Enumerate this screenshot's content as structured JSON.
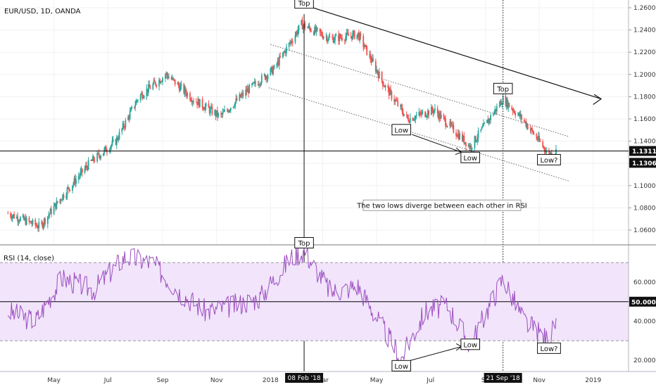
{
  "header": {
    "symbol_title": "EUR/USD, 1D, OANDA"
  },
  "rsi_panel": {
    "title": "RSI (14, close)"
  },
  "colors": {
    "up": "#26a69a",
    "down": "#ef5350",
    "rsi_line": "#9c4fbf",
    "rsi_band": "#f1e4fb",
    "axis_marker": "#000000"
  },
  "chart_data": [
    {
      "type": "candlestick",
      "title": "EUR/USD, 1D, OANDA",
      "y_ticks": [
        "1.26000",
        "1.24000",
        "1.22000",
        "1.20000",
        "1.18000",
        "1.16000",
        "1.14000",
        "1.12000",
        "1.10000",
        "1.08000",
        "1.06000"
      ],
      "ylim": [
        1.05,
        1.266
      ],
      "x_ticks": [
        "May",
        "Jul",
        "Sep",
        "Nov",
        "2018",
        "Mar",
        "May",
        "Jul",
        "Se",
        "Nov",
        "2019"
      ],
      "x_markers": [
        "08 Feb '18",
        "21 Sep '18"
      ],
      "price_labels": [
        "1.13115",
        "1.13064"
      ],
      "current_price": 1.13115,
      "anchor_points": [
        {
          "date": "2017-03-10",
          "close": 1.075
        },
        {
          "date": "2017-04-15",
          "close": 1.063
        },
        {
          "date": "2017-05-10",
          "close": 1.09
        },
        {
          "date": "2017-06-10",
          "close": 1.12
        },
        {
          "date": "2017-07-10",
          "close": 1.14
        },
        {
          "date": "2017-08-05",
          "close": 1.18
        },
        {
          "date": "2017-09-05",
          "close": 1.2
        },
        {
          "date": "2017-10-05",
          "close": 1.178
        },
        {
          "date": "2017-11-05",
          "close": 1.162
        },
        {
          "date": "2017-12-05",
          "close": 1.185
        },
        {
          "date": "2018-01-05",
          "close": 1.205
        },
        {
          "date": "2018-02-05",
          "close": 1.245
        },
        {
          "date": "2018-03-10",
          "close": 1.232
        },
        {
          "date": "2018-04-10",
          "close": 1.236
        },
        {
          "date": "2018-05-10",
          "close": 1.19
        },
        {
          "date": "2018-06-05",
          "close": 1.16
        },
        {
          "date": "2018-07-05",
          "close": 1.168
        },
        {
          "date": "2018-08-15",
          "close": 1.135
        },
        {
          "date": "2018-09-21",
          "close": 1.178
        },
        {
          "date": "2018-10-15",
          "close": 1.158
        },
        {
          "date": "2018-11-12",
          "close": 1.128
        },
        {
          "date": "2018-11-20",
          "close": 1.131
        }
      ],
      "annotations": {
        "callouts": [
          {
            "text": "Top",
            "date": "2018-02-08",
            "price": 1.264
          },
          {
            "text": "Top",
            "date": "2018-09-21",
            "price": 1.187
          },
          {
            "text": "Low",
            "date": "2018-05-29",
            "price": 1.15
          },
          {
            "text": "Low",
            "date": "2018-08-15",
            "price": 1.125
          },
          {
            "text": "Low?",
            "date": "2018-11-12",
            "price": 1.123
          }
        ],
        "note": "The two lows diverge between each other in RSI"
      }
    },
    {
      "type": "line",
      "title": "RSI (14, close)",
      "y_ticks": [
        "60.0000",
        "40.0000",
        "20.0000"
      ],
      "ylim": [
        15,
        80
      ],
      "level_label": "50.0000",
      "bands": [
        30,
        70
      ],
      "anchor_points": [
        {
          "date": "2017-03-10",
          "value": 45
        },
        {
          "date": "2017-04-10",
          "value": 40
        },
        {
          "date": "2017-05-10",
          "value": 62
        },
        {
          "date": "2017-06-15",
          "value": 56
        },
        {
          "date": "2017-07-20",
          "value": 73
        },
        {
          "date": "2017-08-20",
          "value": 70
        },
        {
          "date": "2017-09-20",
          "value": 55
        },
        {
          "date": "2017-10-20",
          "value": 45
        },
        {
          "date": "2017-11-20",
          "value": 48
        },
        {
          "date": "2017-12-20",
          "value": 52
        },
        {
          "date": "2018-01-25",
          "value": 73
        },
        {
          "date": "2018-02-08",
          "value": 76
        },
        {
          "date": "2018-03-10",
          "value": 55
        },
        {
          "date": "2018-04-10",
          "value": 58
        },
        {
          "date": "2018-05-10",
          "value": 35
        },
        {
          "date": "2018-05-29",
          "value": 21
        },
        {
          "date": "2018-06-25",
          "value": 45
        },
        {
          "date": "2018-07-20",
          "value": 48
        },
        {
          "date": "2018-08-15",
          "value": 28
        },
        {
          "date": "2018-09-21",
          "value": 62
        },
        {
          "date": "2018-10-15",
          "value": 40
        },
        {
          "date": "2018-11-12",
          "value": 30
        },
        {
          "date": "2018-11-20",
          "value": 40
        }
      ],
      "annotations": {
        "callouts": [
          {
            "text": "Top",
            "date": "2018-02-08",
            "value": 80
          },
          {
            "text": "Low",
            "date": "2018-05-29",
            "value": 17
          },
          {
            "text": "Low",
            "date": "2018-08-15",
            "value": 28
          },
          {
            "text": "Low?",
            "date": "2018-11-12",
            "value": 26
          }
        ]
      }
    }
  ]
}
